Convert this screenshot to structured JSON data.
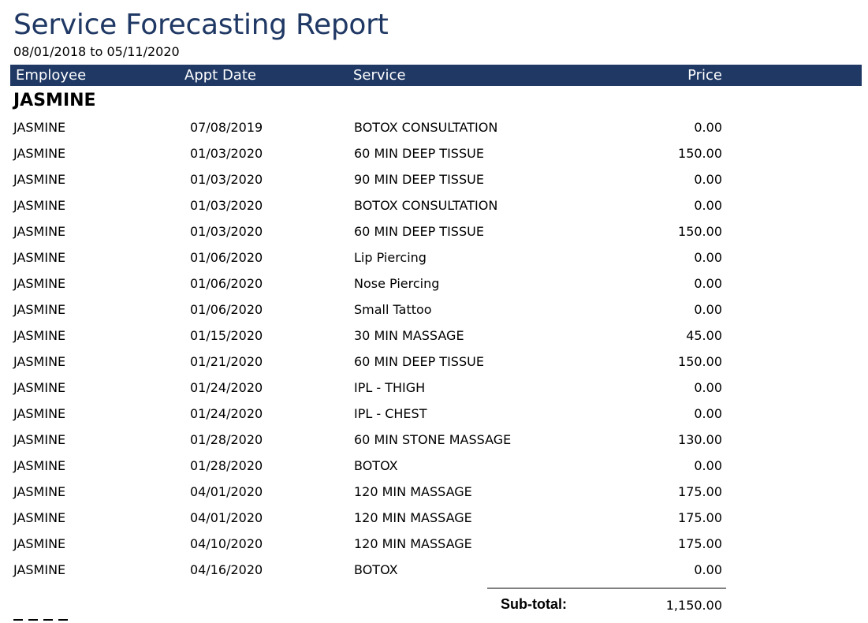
{
  "report": {
    "title": "Service Forecasting Report",
    "date_range": "08/01/2018 to 05/11/2020"
  },
  "columns": {
    "employee": "Employee",
    "appt_date": "Appt Date",
    "service": "Service",
    "price": "Price"
  },
  "group": {
    "name": "JASMINE",
    "rows": [
      {
        "employee": "JASMINE",
        "date": "07/08/2019",
        "service": "BOTOX CONSULTATION",
        "price": "0.00"
      },
      {
        "employee": "JASMINE",
        "date": "01/03/2020",
        "service": "60 MIN DEEP TISSUE",
        "price": "150.00"
      },
      {
        "employee": "JASMINE",
        "date": "01/03/2020",
        "service": "90 MIN DEEP TISSUE",
        "price": "0.00"
      },
      {
        "employee": "JASMINE",
        "date": "01/03/2020",
        "service": "BOTOX CONSULTATION",
        "price": "0.00"
      },
      {
        "employee": "JASMINE",
        "date": "01/03/2020",
        "service": "60 MIN DEEP TISSUE",
        "price": "150.00"
      },
      {
        "employee": "JASMINE",
        "date": "01/06/2020",
        "service": "Lip Piercing",
        "price": "0.00"
      },
      {
        "employee": "JASMINE",
        "date": "01/06/2020",
        "service": "Nose Piercing",
        "price": "0.00"
      },
      {
        "employee": "JASMINE",
        "date": "01/06/2020",
        "service": "Small Tattoo",
        "price": "0.00"
      },
      {
        "employee": "JASMINE",
        "date": "01/15/2020",
        "service": "30 MIN MASSAGE",
        "price": "45.00"
      },
      {
        "employee": "JASMINE",
        "date": "01/21/2020",
        "service": "60 MIN DEEP TISSUE",
        "price": "150.00"
      },
      {
        "employee": "JASMINE",
        "date": "01/24/2020",
        "service": "IPL - THIGH",
        "price": "0.00"
      },
      {
        "employee": "JASMINE",
        "date": "01/24/2020",
        "service": "IPL - CHEST",
        "price": "0.00"
      },
      {
        "employee": "JASMINE",
        "date": "01/28/2020",
        "service": "60 MIN STONE MASSAGE",
        "price": "130.00"
      },
      {
        "employee": "JASMINE",
        "date": "01/28/2020",
        "service": "BOTOX",
        "price": "0.00"
      },
      {
        "employee": "JASMINE",
        "date": "04/01/2020",
        "service": "120 MIN MASSAGE",
        "price": "175.00"
      },
      {
        "employee": "JASMINE",
        "date": "04/01/2020",
        "service": "120 MIN MASSAGE",
        "price": "175.00"
      },
      {
        "employee": "JASMINE",
        "date": "04/10/2020",
        "service": "120 MIN MASSAGE",
        "price": "175.00"
      },
      {
        "employee": "JASMINE",
        "date": "04/16/2020",
        "service": "BOTOX",
        "price": "0.00"
      }
    ],
    "subtotal_label": "Sub-total:",
    "subtotal_value": "1,150.00"
  },
  "colors": {
    "header_bg": "#1f3864",
    "title_text": "#1f3864",
    "rule": "#808080"
  }
}
